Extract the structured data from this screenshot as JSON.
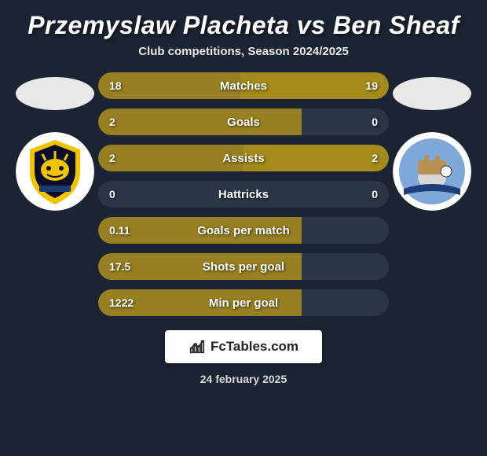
{
  "title": "Przemyslaw Placheta vs Ben Sheaf",
  "subtitle": "Club competitions, Season 2024/2025",
  "date": "24 february 2025",
  "brand": "FcTables.com",
  "colors": {
    "row_bg": "#2a3648",
    "left_bar": "#988022",
    "right_bar": "#a38a1a",
    "page_bg": "#1a2432"
  },
  "crest_left": {
    "outer": "#ffffff",
    "shield": "#f0c400",
    "inner": "#0a0e2a",
    "accent": "#1b3c6f"
  },
  "crest_right": {
    "outer": "#ffffff",
    "sky": "#7fa8d8",
    "ribbon": "#1f3f7b"
  },
  "stats": [
    {
      "label": "Matches",
      "left_val": "18",
      "right_val": "19",
      "left_pct": 49,
      "right_pct": 51,
      "show_right": true
    },
    {
      "label": "Goals",
      "left_val": "2",
      "right_val": "0",
      "left_pct": 70,
      "right_pct": 0,
      "show_right": true
    },
    {
      "label": "Assists",
      "left_val": "2",
      "right_val": "2",
      "left_pct": 50,
      "right_pct": 50,
      "show_right": true
    },
    {
      "label": "Hattricks",
      "left_val": "0",
      "right_val": "0",
      "left_pct": 0,
      "right_pct": 0,
      "show_right": true
    },
    {
      "label": "Goals per match",
      "left_val": "0.11",
      "right_val": "",
      "left_pct": 70,
      "right_pct": 0,
      "show_right": false
    },
    {
      "label": "Shots per goal",
      "left_val": "17.5",
      "right_val": "",
      "left_pct": 70,
      "right_pct": 0,
      "show_right": false
    },
    {
      "label": "Min per goal",
      "left_val": "1222",
      "right_val": "",
      "left_pct": 70,
      "right_pct": 0,
      "show_right": false
    }
  ]
}
